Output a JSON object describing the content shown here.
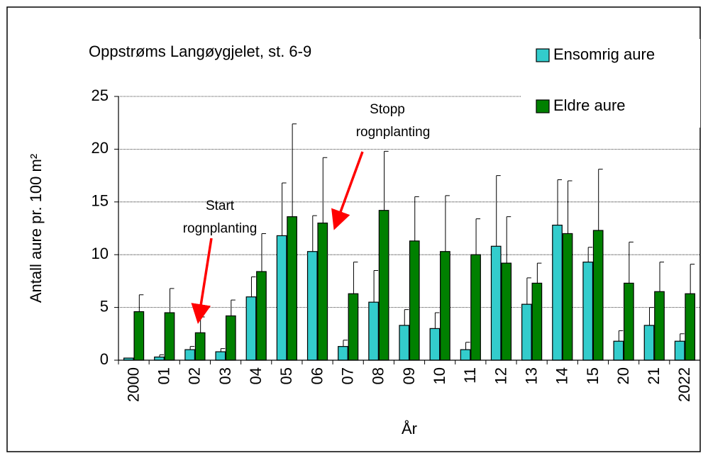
{
  "chart_data": {
    "type": "bar",
    "title": "Oppstrøms Langøygjelet, st. 6-9",
    "y_label": "Antall aure pr. 100 m²",
    "x_label": "År",
    "categories": [
      "2000",
      "01",
      "02",
      "03",
      "04",
      "05",
      "06",
      "07",
      "08",
      "09",
      "10",
      "11",
      "12",
      "13",
      "14",
      "15",
      "20",
      "21",
      "2022"
    ],
    "series": [
      {
        "name": "Ensomrig aure",
        "color": "#33cccc",
        "values": [
          0.2,
          0.3,
          1.0,
          0.8,
          6.0,
          11.8,
          10.3,
          1.3,
          5.5,
          3.3,
          3.0,
          1.0,
          10.8,
          5.3,
          12.8,
          9.3,
          1.8,
          3.3,
          1.8
        ],
        "errors": [
          0,
          0.2,
          0.3,
          0.3,
          1.9,
          5.0,
          3.4,
          0.6,
          3.0,
          1.5,
          1.5,
          0.7,
          6.7,
          2.5,
          4.3,
          1.4,
          1.0,
          1.7,
          0.7
        ]
      },
      {
        "name": "Eldre aure",
        "color": "#008000",
        "values": [
          4.6,
          4.5,
          2.6,
          4.2,
          8.4,
          13.6,
          13.0,
          6.3,
          14.2,
          11.3,
          10.3,
          10.0,
          9.2,
          7.3,
          12.0,
          12.3,
          7.3,
          6.5,
          6.3
        ],
        "errors": [
          1.6,
          2.3,
          1.5,
          1.5,
          3.6,
          8.8,
          6.2,
          3.0,
          5.6,
          4.2,
          5.3,
          3.4,
          4.4,
          1.9,
          5.0,
          5.8,
          3.9,
          2.8,
          2.8
        ]
      }
    ],
    "annotations": [
      {
        "lines": [
          "Start",
          "rognplanting"
        ]
      },
      {
        "lines": [
          "Stopp",
          "rognplanting"
        ]
      }
    ],
    "ylim": [
      0,
      25
    ],
    "yticks": [
      0,
      5,
      10,
      15,
      20,
      25
    ],
    "grid": true,
    "legend": "top right"
  }
}
